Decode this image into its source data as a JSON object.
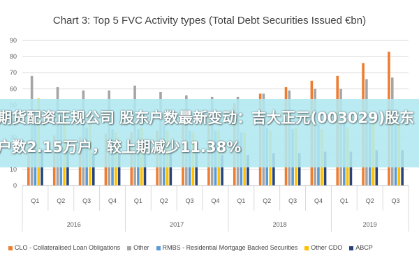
{
  "chart_data": {
    "type": "bar",
    "title": "Chart 3: Top 5 FVC Activity types (Total Debt Securities Issued €bn)",
    "xlabel": "",
    "ylabel": "",
    "ylim": [
      0,
      90
    ],
    "y_ticks": [
      "0",
      "10",
      "20",
      "30",
      "40",
      "50",
      "60",
      "70",
      "80",
      "90"
    ],
    "grid": true,
    "legend_position": "bottom",
    "categories": [
      "Q1",
      "Q2",
      "Q3",
      "Q4",
      "Q1",
      "Q2",
      "Q3",
      "Q4",
      "Q1",
      "Q2",
      "Q3",
      "Q4",
      "Q1",
      "Q2",
      "Q3"
    ],
    "year_groups": [
      {
        "label": "2016",
        "count": 4
      },
      {
        "label": "2017",
        "count": 4
      },
      {
        "label": "2018",
        "count": 4
      },
      {
        "label": "2019",
        "count": 3
      }
    ],
    "series": [
      {
        "name": "CLO - Collateralised Loan Obligations",
        "color": "#ed7d31",
        "values": [
          28,
          31,
          30,
          32,
          33,
          34,
          38,
          45,
          51,
          57,
          61,
          65,
          68,
          76,
          83
        ]
      },
      {
        "name": "Other",
        "color": "#a5a5a5",
        "values": [
          68,
          61,
          59,
          59,
          62,
          58,
          56,
          55,
          55,
          57,
          59,
          60,
          60,
          66,
          67
        ]
      },
      {
        "name": "RMBS - Residential Mortgage Backed Securities",
        "color": "#5b9bd5",
        "values": [
          46,
          37,
          36,
          35,
          35,
          37,
          34,
          34,
          33,
          36,
          35,
          38,
          39,
          41,
          42
        ]
      },
      {
        "name": "Other CDO",
        "color": "#ffc000",
        "values": [
          54,
          38,
          38,
          33,
          36,
          34,
          33,
          34,
          33,
          34,
          36,
          35,
          36,
          39,
          38
        ]
      },
      {
        "name": "ABCP",
        "color": "#264478",
        "values": [
          22,
          21,
          20,
          20,
          20,
          20,
          20,
          19,
          19,
          20,
          20,
          21,
          21,
          22,
          22
        ]
      }
    ]
  },
  "overlay": {
    "headline": "期货配资正规公司 股东户数最新变动：吉大正元(003029)股东户数2.15万户，较上期减少11.38%"
  },
  "colors": {
    "title": "#404040",
    "axis_text": "#595959",
    "grid": "#d9d9d9",
    "banner": "#b2e8f0"
  }
}
